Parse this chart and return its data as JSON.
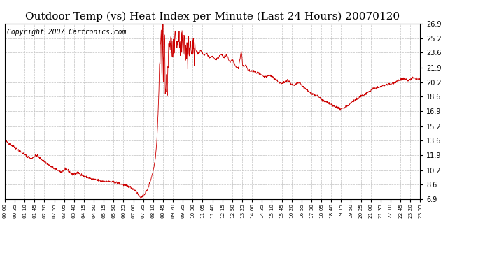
{
  "title": "Outdoor Temp (vs) Heat Index per Minute (Last 24 Hours) 20070120",
  "copyright": "Copyright 2007 Cartronics.com",
  "line_color": "#cc0000",
  "background_color": "#ffffff",
  "grid_color": "#bbbbbb",
  "yticks": [
    6.9,
    8.6,
    10.2,
    11.9,
    13.6,
    15.2,
    16.9,
    18.6,
    20.2,
    21.9,
    23.6,
    25.2,
    26.9
  ],
  "ymin": 6.9,
  "ymax": 26.9,
  "xtick_labels": [
    "00:00",
    "00:35",
    "01:10",
    "01:45",
    "02:20",
    "02:55",
    "03:05",
    "03:40",
    "04:15",
    "04:50",
    "05:15",
    "05:50",
    "06:25",
    "07:00",
    "07:35",
    "08:10",
    "08:45",
    "09:20",
    "09:35",
    "10:30",
    "11:05",
    "11:40",
    "12:15",
    "12:50",
    "13:25",
    "14:00",
    "14:35",
    "15:10",
    "15:45",
    "16:20",
    "16:55",
    "17:30",
    "18:05",
    "18:40",
    "19:15",
    "19:50",
    "20:25",
    "21:00",
    "21:35",
    "22:10",
    "22:45",
    "23:20",
    "23:55"
  ],
  "title_fontsize": 11,
  "copyright_fontsize": 7
}
